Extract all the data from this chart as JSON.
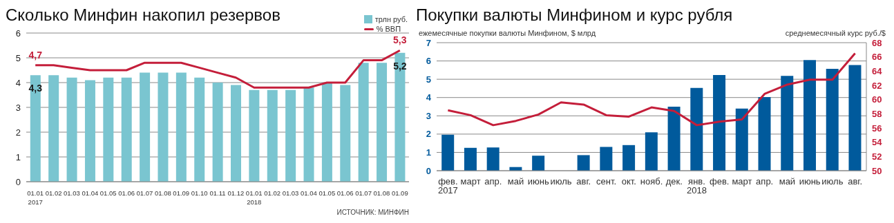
{
  "chart_data": [
    {
      "type": "bar",
      "title": "Сколько Минфин накопил резервов",
      "categories": [
        "01.01\n2017",
        "01.02",
        "01.03",
        "01.04",
        "01.05",
        "01.06",
        "01.07",
        "01.08",
        "01.09",
        "01.10",
        "01.11",
        "01.12",
        "01.01\n2018",
        "01.02",
        "01.03",
        "01.04",
        "01.05",
        "01.06",
        "01.07",
        "01.08",
        "01.09"
      ],
      "series": [
        {
          "name": "трлн руб.",
          "color": "#7ac5d0",
          "values": [
            4.3,
            4.3,
            4.2,
            4.1,
            4.2,
            4.2,
            4.4,
            4.4,
            4.4,
            4.2,
            4.0,
            3.9,
            3.7,
            3.7,
            3.7,
            3.8,
            4.0,
            3.9,
            4.8,
            4.8,
            5.2
          ],
          "value_labels": [
            "4,3",
            null,
            null,
            null,
            null,
            null,
            null,
            null,
            null,
            null,
            null,
            null,
            null,
            null,
            null,
            null,
            null,
            null,
            null,
            null,
            "5,2"
          ]
        },
        {
          "name": "% ВВП",
          "type": "line",
          "color": "#c41e3a",
          "values": [
            4.7,
            4.7,
            4.6,
            4.5,
            4.5,
            4.5,
            4.8,
            4.8,
            4.8,
            4.6,
            4.4,
            4.2,
            3.8,
            3.8,
            3.8,
            3.8,
            4.0,
            4.0,
            4.9,
            4.9,
            5.3
          ],
          "value_labels": [
            "4,7",
            null,
            null,
            null,
            null,
            null,
            null,
            null,
            null,
            null,
            null,
            null,
            null,
            null,
            null,
            null,
            null,
            null,
            null,
            null,
            "5,3"
          ]
        }
      ],
      "ylim": [
        0,
        6
      ],
      "yticks": [
        0,
        1,
        2,
        3,
        4,
        5,
        6
      ],
      "grid": "y",
      "legend": "top right",
      "annotations": [
        "ИСТОЧНИК: МИНФИН"
      ]
    },
    {
      "type": "bar",
      "title": "Покупки валюты Минфином и курс рубля",
      "ylabel": "ежемесячные покупки валюты Минфином, $ млрд",
      "y2label": "среднемесячный курс руб./$",
      "categories": [
        "фев.\n2017",
        "март",
        "апр.",
        "май",
        "июнь",
        "июль",
        "авг.",
        "сент.",
        "окт.",
        "нояб.",
        "дек.",
        "янв.\n2018",
        "фев.",
        "март",
        "апр.",
        "май",
        "июнь",
        "июль",
        "авг."
      ],
      "series": [
        {
          "color": "#005a9c",
          "values": [
            1.97,
            1.25,
            1.27,
            0.2,
            0.82,
            null,
            0.85,
            1.3,
            1.4,
            2.1,
            3.5,
            4.53,
            5.23,
            3.4,
            4.03,
            5.18,
            6.05,
            5.57,
            5.78
          ]
        },
        {
          "type": "line",
          "axis": "y2",
          "color": "#c41e3a",
          "values": [
            58.5,
            57.8,
            56.4,
            57.0,
            57.9,
            59.6,
            59.3,
            57.8,
            57.6,
            58.9,
            58.4,
            56.4,
            56.9,
            57.2,
            60.8,
            62.1,
            62.8,
            62.8,
            66.5
          ]
        }
      ],
      "ylim": [
        0,
        7
      ],
      "yticks": [
        0,
        1,
        2,
        3,
        4,
        5,
        6,
        7
      ],
      "y2lim": [
        50,
        68
      ],
      "y2ticks": [
        50,
        52,
        54,
        56,
        58,
        60,
        62,
        64,
        66,
        68
      ],
      "grid": "y"
    }
  ]
}
